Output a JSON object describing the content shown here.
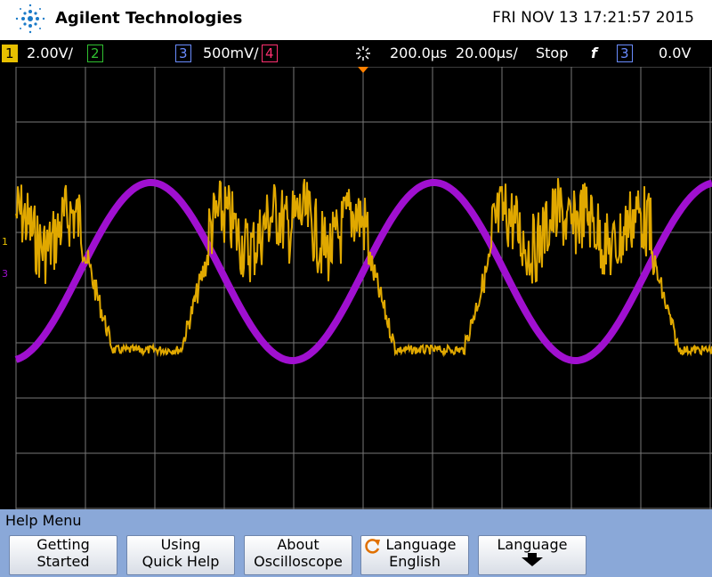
{
  "header": {
    "brand": "Agilent Technologies",
    "datetime": "FRI NOV 13 17:21:57 2015"
  },
  "status": {
    "ch1": "1",
    "ch1_scale": "2.00V/",
    "ch2": "2",
    "ch3": "3",
    "ch3_scale": "500mV/",
    "ch4": "4",
    "time_delay": "200.0µs",
    "time_scale": "20.00µs/",
    "run_state": "Stop",
    "trigger_slope": "f",
    "trigger_source": "3",
    "trigger_level": "0.0V"
  },
  "markers": {
    "ch1": "1",
    "ch3": "3"
  },
  "help_menu": {
    "title": "Help Menu",
    "buttons": [
      [
        "Getting",
        "Started"
      ],
      [
        "Using",
        "Quick Help"
      ],
      [
        "About",
        "Oscilloscope"
      ],
      [
        "Language",
        "English"
      ],
      [
        "Language"
      ]
    ]
  }
}
